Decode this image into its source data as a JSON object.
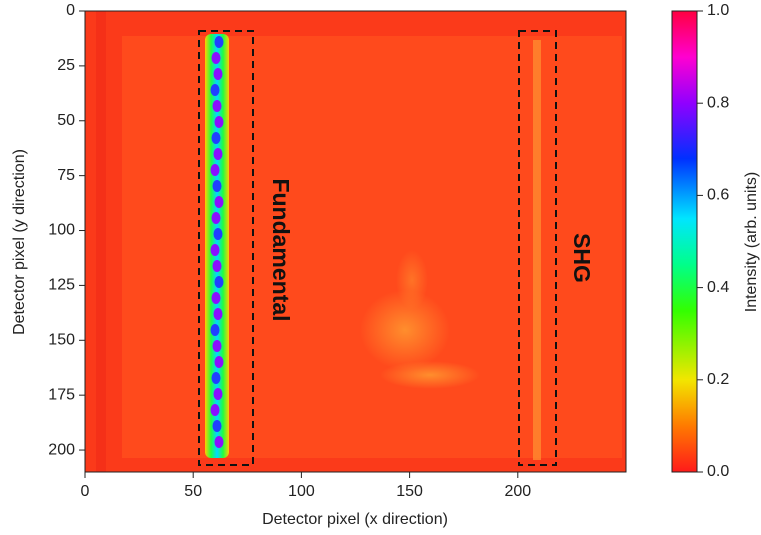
{
  "chart_data": {
    "type": "heatmap",
    "xlabel": "Detector pixel (x direction)",
    "ylabel": "Detector pixel (y direction)",
    "xlim": [
      0,
      250
    ],
    "xticks": [
      0,
      50,
      100,
      150,
      200
    ],
    "ylim": [
      210,
      0
    ],
    "yticks": [
      0,
      25,
      50,
      75,
      100,
      125,
      150,
      175,
      200
    ],
    "colorbar": {
      "label": "Intensity (arb. units)",
      "lim": [
        0,
        1
      ],
      "ticks": [
        {
          "value": 0,
          "label": "0.0"
        },
        0.2,
        0.4,
        0.6,
        0.8,
        {
          "value": 1,
          "label": "1.0"
        }
      ]
    },
    "annotations": [
      "Fundamental",
      "SHG"
    ]
  }
}
